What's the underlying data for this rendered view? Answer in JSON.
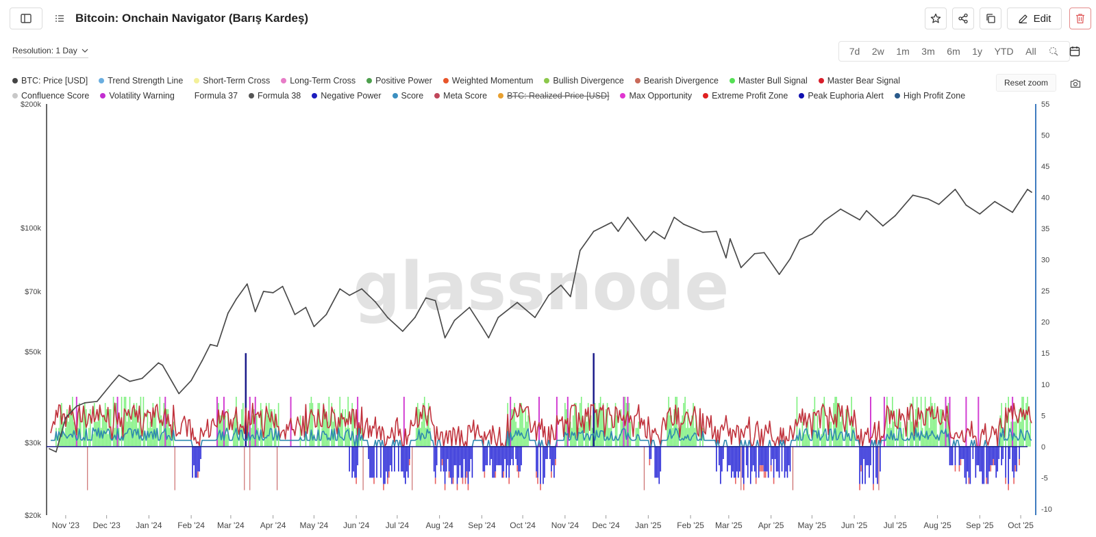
{
  "header": {
    "title": "Bitcoin: Onchain Navigator (Barış Kardeş)",
    "edit_label": "Edit"
  },
  "toolbar": {
    "resolution_label": "Resolution: 1 Day",
    "ranges": [
      "7d",
      "2w",
      "1m",
      "3m",
      "6m",
      "1y",
      "YTD",
      "All"
    ],
    "reset_zoom_label": "Reset zoom"
  },
  "watermark": "glassnode",
  "colors": {
    "price_line": "#4a4a4a",
    "positive_bars": "#7df07d",
    "negative_bars": "#2323d6",
    "meta_score": "#c0323c",
    "score": "#2f89b0",
    "volatility": "#d23ed2",
    "zero_line": "#1a1a8a",
    "right_axis": "#3e7bbf"
  },
  "legend": [
    {
      "label": "BTC: Price [USD]",
      "color": "#444444",
      "disabled": false
    },
    {
      "label": "Trend Strength Line",
      "color": "#6aaee0",
      "disabled": false
    },
    {
      "label": "Short-Term Cross",
      "color": "#f3f09a",
      "disabled": false
    },
    {
      "label": "Long-Term Cross",
      "color": "#e77cc7",
      "disabled": false
    },
    {
      "label": "Positive Power",
      "color": "#4ea04e",
      "disabled": false
    },
    {
      "label": "Weighted Momentum",
      "color": "#e8552a",
      "disabled": false
    },
    {
      "label": "Bullish Divergence",
      "color": "#8cc84b",
      "disabled": false
    },
    {
      "label": "Bearish Divergence",
      "color": "#c96a5a",
      "disabled": false
    },
    {
      "label": "Master Bull Signal",
      "color": "#55e055",
      "disabled": false
    },
    {
      "label": "Master Bear Signal",
      "color": "#d81e2a",
      "disabled": false
    },
    {
      "label": "Confluence Score",
      "color": "#c8c8c8",
      "disabled": false
    },
    {
      "label": "Volatility Warning",
      "color": "#c22ed0",
      "disabled": false
    },
    {
      "label": "Formula 37",
      "color": "#ffffff",
      "disabled": false
    },
    {
      "label": "Formula 38",
      "color": "#555555",
      "disabled": false
    },
    {
      "label": "Negative Power",
      "color": "#1d1dbe",
      "disabled": false
    },
    {
      "label": "Score",
      "color": "#3b8fc0",
      "disabled": false
    },
    {
      "label": "Meta Score",
      "color": "#c0465a",
      "disabled": false
    },
    {
      "label": "BTC: Realized Price [USD]",
      "color": "#e8a030",
      "disabled": true
    },
    {
      "label": "Max Opportunity",
      "color": "#e035d0",
      "disabled": false
    },
    {
      "label": "Extreme Profit Zone",
      "color": "#e02020",
      "disabled": false
    },
    {
      "label": "Peak Euphoria Alert",
      "color": "#1010b0",
      "disabled": false
    },
    {
      "label": "High Profit Zone",
      "color": "#2a5a8a",
      "disabled": false
    }
  ],
  "chart_data": {
    "type": "line",
    "x_labels": [
      "Nov '23",
      "Dec '23",
      "Jan '24",
      "Feb '24",
      "Mar '24",
      "Apr '24",
      "May '24",
      "Jun '24",
      "Jul '24",
      "Aug '24",
      "Sep '24",
      "Oct '24",
      "Nov '24",
      "Dec '24",
      "Jan '25",
      "Feb '25",
      "Mar '25",
      "Apr '25",
      "May '25",
      "Jun '25",
      "Jul '25",
      "Aug '25",
      "Sep '25",
      "Oct '25"
    ],
    "left_axis": {
      "scale": "log",
      "range": [
        20000,
        200000
      ],
      "ticks": [
        20000,
        30000,
        50000,
        70000,
        100000,
        200000
      ],
      "tick_labels": [
        "$20k",
        "$30k",
        "$50k",
        "$70k",
        "$100k",
        "$200k"
      ]
    },
    "right_axis": {
      "range": [
        -11,
        55
      ],
      "ticks": [
        -10,
        -5,
        0,
        5,
        10,
        15,
        20,
        25,
        30,
        35,
        40,
        45,
        50,
        55
      ],
      "tick_labels": [
        "-10",
        "-5",
        "0",
        "5",
        "10",
        "15",
        "20",
        "25",
        "30",
        "35",
        "40",
        "45",
        "50",
        "55"
      ]
    },
    "series": [
      {
        "name": "BTC: Price [USD]",
        "axis": "left",
        "x": [
          "2023-10-20",
          "2023-10-25",
          "2023-11-01",
          "2023-11-09",
          "2023-11-15",
          "2023-11-24",
          "2023-12-05",
          "2023-12-10",
          "2023-12-18",
          "2023-12-27",
          "2024-01-08",
          "2024-01-11",
          "2024-01-23",
          "2024-02-01",
          "2024-02-09",
          "2024-02-15",
          "2024-02-20",
          "2024-02-28",
          "2024-03-05",
          "2024-03-13",
          "2024-03-19",
          "2024-03-25",
          "2024-04-01",
          "2024-04-08",
          "2024-04-17",
          "2024-04-25",
          "2024-05-01",
          "2024-05-10",
          "2024-05-20",
          "2024-05-27",
          "2024-06-05",
          "2024-06-15",
          "2024-06-24",
          "2024-07-05",
          "2024-07-14",
          "2024-07-22",
          "2024-07-29",
          "2024-08-05",
          "2024-08-12",
          "2024-08-23",
          "2024-09-01",
          "2024-09-06",
          "2024-09-13",
          "2024-09-27",
          "2024-10-10",
          "2024-10-20",
          "2024-10-29",
          "2024-11-05",
          "2024-11-12",
          "2024-11-22",
          "2024-12-05",
          "2024-12-10",
          "2024-12-17",
          "2024-12-30",
          "2025-01-05",
          "2025-01-13",
          "2025-01-20",
          "2025-01-27",
          "2025-02-10",
          "2025-02-20",
          "2025-02-27",
          "2025-03-02",
          "2025-03-10",
          "2025-03-20",
          "2025-03-27",
          "2025-04-07",
          "2025-04-15",
          "2025-04-22",
          "2025-05-01",
          "2025-05-10",
          "2025-05-22",
          "2025-06-05",
          "2025-06-10",
          "2025-06-22",
          "2025-07-01",
          "2025-07-14",
          "2025-07-25",
          "2025-08-02",
          "2025-08-14",
          "2025-08-22",
          "2025-09-01",
          "2025-09-12",
          "2025-09-25",
          "2025-10-01",
          "2025-10-06",
          "2025-10-09"
        ],
        "y": [
          29000,
          28500,
          34500,
          36800,
          37500,
          37800,
          41900,
          43800,
          42300,
          43000,
          46900,
          46300,
          39500,
          42500,
          47500,
          52000,
          51500,
          62000,
          67000,
          73000,
          62500,
          70000,
          69500,
          72000,
          61500,
          64000,
          57500,
          61500,
          71000,
          68500,
          71000,
          66000,
          60500,
          56000,
          60500,
          67500,
          66500,
          54000,
          59500,
          64000,
          57500,
          54000,
          60500,
          65800,
          60500,
          68500,
          72500,
          68000,
          88000,
          98000,
          103000,
          98000,
          106000,
          93000,
          98000,
          94000,
          106000,
          102000,
          97500,
          98000,
          84500,
          94000,
          80000,
          86500,
          87000,
          77000,
          84000,
          93500,
          96500,
          104000,
          111000,
          104500,
          110000,
          101000,
          107000,
          120000,
          117500,
          114000,
          124000,
          113500,
          108000,
          115800,
          109000,
          117000,
          124000,
          122000
        ]
      },
      {
        "name": "Negative Power",
        "axis": "right",
        "min": -6,
        "periods": [
          [
            "2024-02-01",
            "2024-02-08"
          ],
          [
            "2024-05-27",
            "2024-06-02"
          ],
          [
            "2024-06-10",
            "2024-07-10"
          ],
          [
            "2024-07-28",
            "2024-08-25"
          ],
          [
            "2024-09-01",
            "2024-09-30"
          ],
          [
            "2024-10-10",
            "2024-10-25"
          ],
          [
            "2025-01-01",
            "2025-01-10"
          ],
          [
            "2025-02-20",
            "2025-04-15"
          ],
          [
            "2025-06-05",
            "2025-06-20"
          ],
          [
            "2025-08-10",
            "2025-09-30"
          ]
        ]
      },
      {
        "name": "Positive Power",
        "axis": "right",
        "max": 8,
        "periods": [
          [
            "2023-10-25",
            "2024-01-20"
          ],
          [
            "2024-02-20",
            "2024-04-05"
          ],
          [
            "2024-04-20",
            "2024-06-05"
          ],
          [
            "2024-07-15",
            "2024-07-25"
          ],
          [
            "2024-09-20",
            "2024-10-05"
          ],
          [
            "2024-11-01",
            "2024-12-25"
          ],
          [
            "2025-01-15",
            "2025-02-10"
          ],
          [
            "2025-04-20",
            "2025-06-01"
          ],
          [
            "2025-06-25",
            "2025-08-10"
          ],
          [
            "2025-09-15",
            "2025-10-08"
          ]
        ]
      },
      {
        "name": "Meta Score",
        "axis": "right",
        "min": -7,
        "max": 11
      }
    ]
  }
}
